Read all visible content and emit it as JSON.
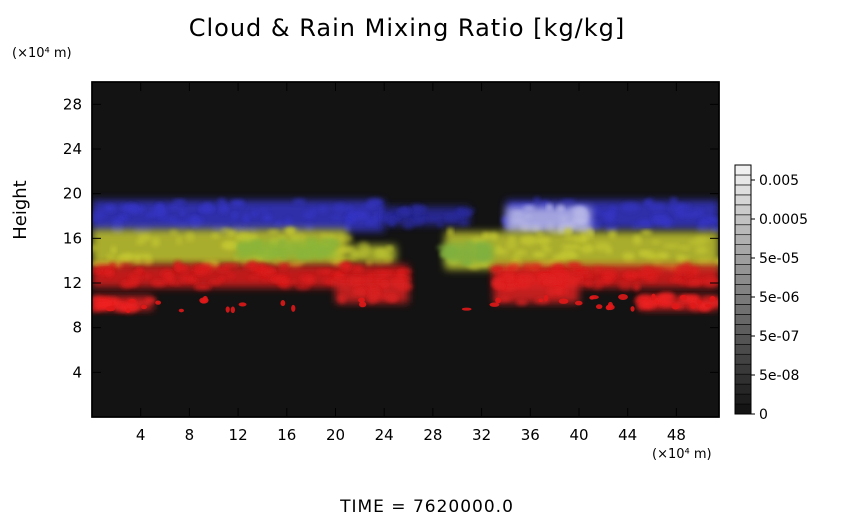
{
  "chart_data": {
    "type": "heatmap",
    "title": "Cloud & Rain Mixing Ratio [kg/kg]",
    "ylabel": "Height",
    "xlabel": "",
    "y_unit": "(×10⁴ m)",
    "x_unit": "(×10⁴ m)",
    "xlim": [
      0,
      51.5
    ],
    "ylim": [
      0,
      30
    ],
    "x_ticks": [
      4,
      8,
      12,
      16,
      20,
      24,
      28,
      32,
      36,
      40,
      44,
      48
    ],
    "y_ticks": [
      4,
      8,
      12,
      16,
      20,
      24,
      28
    ],
    "colorbar": {
      "labels": [
        "0.005",
        "0.0005",
        "5e-05",
        "5e-06",
        "5e-07",
        "5e-08",
        "0"
      ],
      "steps": 25
    },
    "background_color": "#131313",
    "layers": [
      {
        "description_color": "#3a3ac0",
        "band": [
          16.5,
          19.5
        ]
      },
      {
        "description_color": "#c8c83a",
        "band": [
          13.5,
          16.5
        ]
      },
      {
        "description_color": "#e02020",
        "band": [
          9.5,
          13.5
        ]
      }
    ],
    "footer": "TIME = 7620000.0"
  }
}
